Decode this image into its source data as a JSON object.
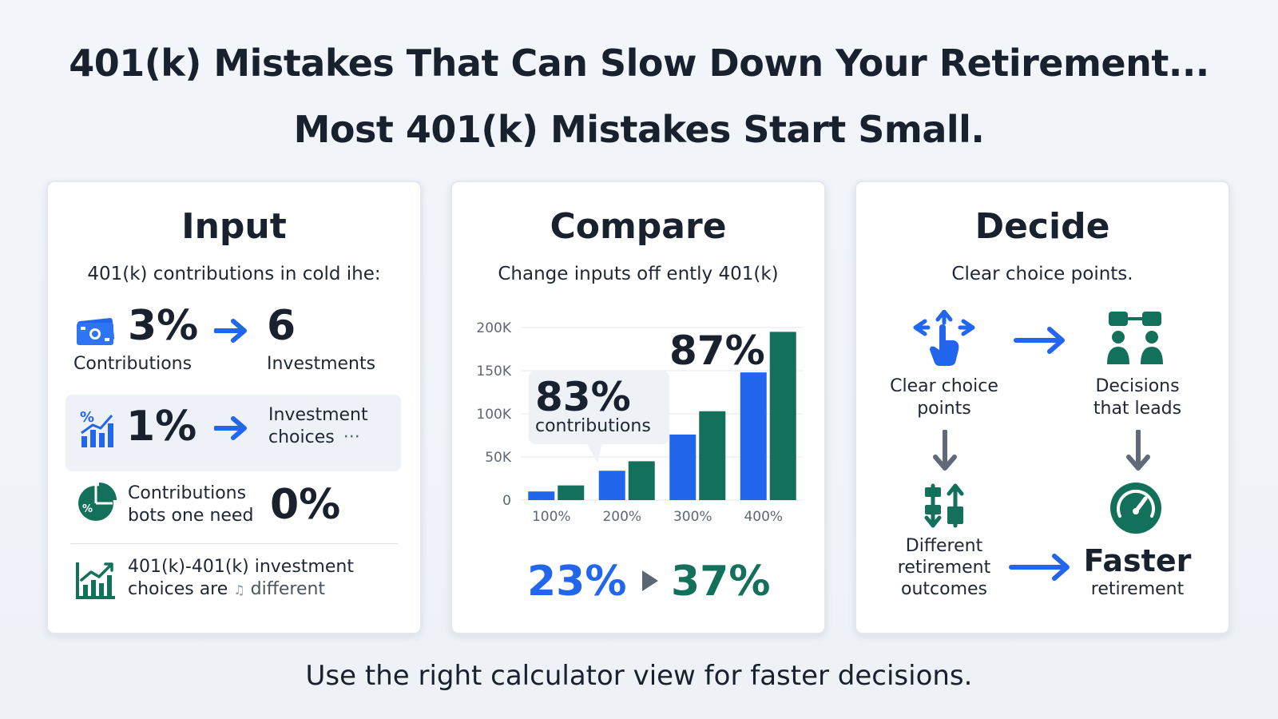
{
  "header": {
    "title_line1": "401(k) Mistakes That Can Slow Down Your Retirement...",
    "title_line2": "Most 401(k)  Mistakes Start Small."
  },
  "footer": {
    "text": "Use the right calculator view for faster decisions."
  },
  "colors": {
    "blue": "#2266ee",
    "green": "#13705a",
    "text": "#18212d"
  },
  "input_card": {
    "title": "Input",
    "subtitle": "401(k) contributions in cold ihe:",
    "row1": {
      "icon": "cash-icon",
      "value": "3%",
      "label": "Contributions",
      "arrow": "arrow-right-icon",
      "target_value": "6",
      "target_label": "Investments"
    },
    "row2": {
      "icon": "percent-chart-icon",
      "value": "1%",
      "arrow": "arrow-right-icon",
      "target_line1": "Investment",
      "target_line2": "choices",
      "more": "···"
    },
    "row3": {
      "icon": "pie-chart-icon",
      "line1": "Contributions",
      "line2": "bots one need",
      "value": "0%"
    },
    "row4": {
      "icon": "growth-chart-icon",
      "line1": "401(k)-401(k) investment",
      "line2": "choices are",
      "glyph": "♫",
      "line2_end": "different"
    }
  },
  "compare_card": {
    "title": "Compare",
    "subtitle": "Change inputs off ently 401(k)",
    "callout": {
      "value": "83%",
      "label": "contributions"
    },
    "peak_label": "87%",
    "result_left": "23%",
    "result_right": "37%"
  },
  "chart_data": {
    "type": "bar",
    "categories": [
      "100%",
      "200%",
      "300%",
      "400%"
    ],
    "series": [
      {
        "color": "#2266ee",
        "values": [
          10000,
          34000,
          76000,
          148000
        ]
      },
      {
        "color": "#13705a",
        "values": [
          17000,
          45000,
          103000,
          195000
        ]
      }
    ],
    "yticks": [
      "200K",
      "150K",
      "100K",
      "50K",
      "0"
    ],
    "ytick_values": [
      200000,
      150000,
      100000,
      50000,
      0
    ],
    "ylim": [
      0,
      200000
    ],
    "grid": true
  },
  "decide_card": {
    "title": "Decide",
    "subtitle": "Clear choice points.",
    "node1": {
      "icon": "hand-pointer-arrows-icon",
      "line1": "Clear choice",
      "line2": "points"
    },
    "node2": {
      "icon": "people-group-icon",
      "line1": "Decisions",
      "line2": "that leads"
    },
    "node3": {
      "icon": "sort-arrows-icon",
      "line1": "Different",
      "line2": "retirement",
      "line3": "outcomes"
    },
    "node4": {
      "icon": "speedometer-icon",
      "line1": "Faster",
      "line2": "retirement"
    }
  }
}
